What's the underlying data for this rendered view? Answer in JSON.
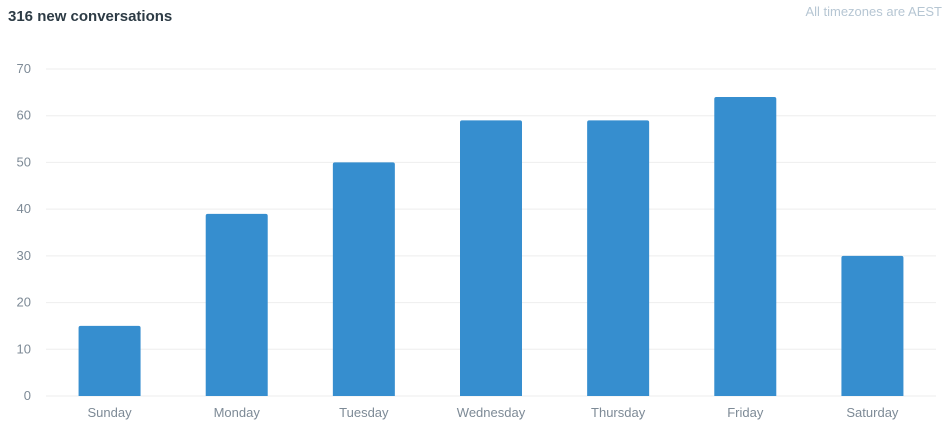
{
  "header": {
    "title": "316 new conversations",
    "timezone_note": "All timezones are AEST"
  },
  "colors": {
    "bar": "#368ecf",
    "grid": "#eeeeee",
    "tick_text": "#7d8a96"
  },
  "chart_data": {
    "type": "bar",
    "categories": [
      "Sunday",
      "Monday",
      "Tuesday",
      "Wednesday",
      "Thursday",
      "Friday",
      "Saturday"
    ],
    "values": [
      15,
      39,
      50,
      59,
      59,
      64,
      30
    ],
    "ylim": [
      0,
      70
    ],
    "yticks": [
      0,
      10,
      20,
      30,
      40,
      50,
      60,
      70
    ],
    "grid": true,
    "legend": "none"
  }
}
